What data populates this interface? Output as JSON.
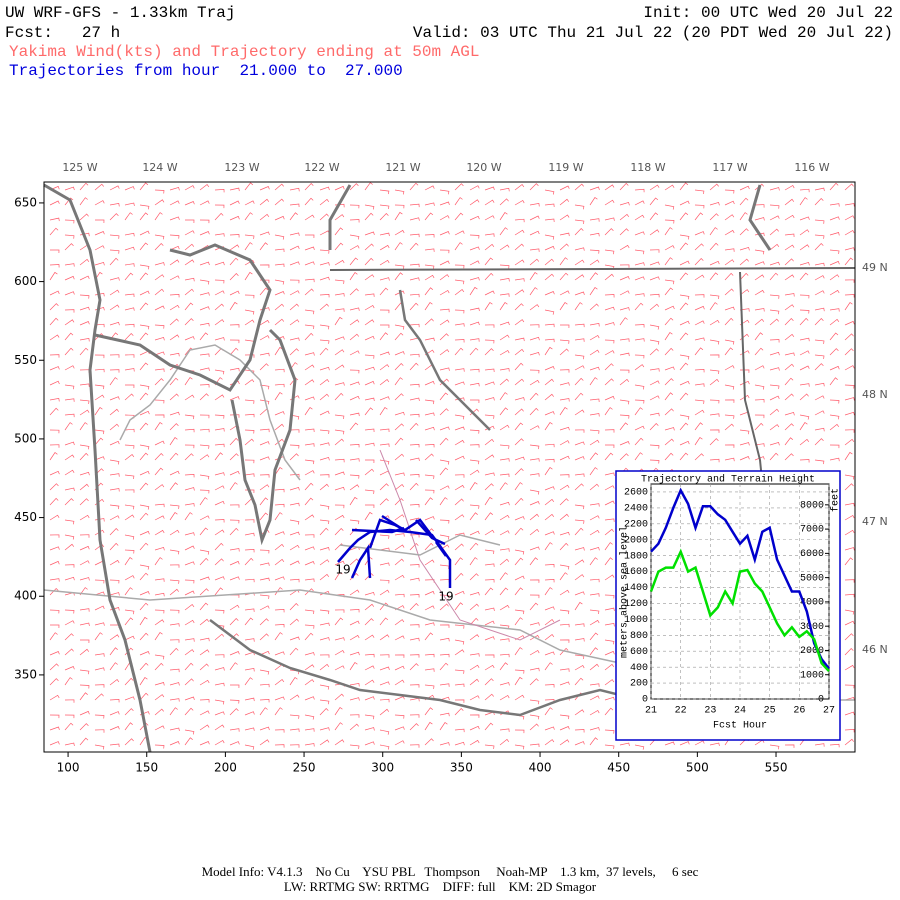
{
  "header": {
    "title": "UW WRF-GFS - 1.33km Traj",
    "fcst": "Fcst:   27 h",
    "init": "Init: 00 UTC Wed 20 Jul 22",
    "valid": "Valid: 03 UTC Thu 21 Jul 22 (20 PDT Wed 20 Jul 22)",
    "subtitle": "Yakima Wind(kts) and Trajectory ending at 50m AGL",
    "trajectories": "Trajectories from hour  21.000 to  27.000"
  },
  "map": {
    "xlim": [
      84.7,
      600.2
    ],
    "ylim": [
      301,
      663.3
    ],
    "xticks": [
      100,
      150,
      200,
      250,
      300,
      350,
      400,
      450,
      500,
      550
    ],
    "yticks": [
      350,
      400,
      450,
      500,
      550,
      600,
      650
    ],
    "longitudes": [
      "125 W",
      "124 W",
      "123 W",
      "122 W",
      "121 W",
      "120 W",
      "119 W",
      "118 W",
      "117 W",
      "116 W"
    ],
    "latitudes": [
      "49 N",
      "48 N",
      "47 N",
      "46 N"
    ],
    "trajectory_labels": [
      "19",
      "19"
    ]
  },
  "chart_data": {
    "type": "line",
    "title": "Trajectory and Terrain Height",
    "xlabel": "Fcst Hour",
    "ylabel": "meters above sea level",
    "y2label": "feet",
    "x": [
      21,
      21.25,
      21.5,
      21.75,
      22,
      22.25,
      22.5,
      22.75,
      23,
      23.25,
      23.5,
      23.75,
      24,
      24.25,
      24.5,
      24.75,
      25,
      25.25,
      25.5,
      25.75,
      26,
      26.25,
      26.5,
      26.75,
      27
    ],
    "series": [
      {
        "color": "#0000cc",
        "values": [
          1850,
          1950,
          2150,
          2400,
          2620,
          2450,
          2150,
          2420,
          2420,
          2320,
          2250,
          2100,
          1950,
          2050,
          1750,
          2100,
          2150,
          1750,
          1550,
          1350,
          1350,
          1100,
          700,
          500,
          380
        ]
      },
      {
        "color": "#00e000",
        "values": [
          1350,
          1600,
          1650,
          1650,
          1850,
          1600,
          1650,
          1350,
          1050,
          1150,
          1350,
          1200,
          1600,
          1620,
          1450,
          1350,
          1150,
          950,
          800,
          900,
          780,
          850,
          750,
          450,
          350
        ]
      }
    ],
    "xlim": [
      21,
      27
    ],
    "xticks": [
      21,
      22,
      23,
      24,
      25,
      26,
      27
    ],
    "ylim": [
      0,
      2700
    ],
    "yticks": [
      0,
      200,
      400,
      600,
      800,
      1000,
      1200,
      1400,
      1600,
      1800,
      2000,
      2200,
      2400,
      2600
    ],
    "y2lim": [
      0,
      8858
    ],
    "y2ticks": [
      0,
      1000,
      2000,
      3000,
      4000,
      5000,
      6000,
      7000,
      8000
    ],
    "grid": true
  },
  "footer": {
    "line1": "Model Info: V4.1.3    No Cu    YSU PBL   Thompson     Noah-MP    1.3 km,  37 levels,     6 sec",
    "line2": "LW: RRTMG SW: RRTMG    DIFF: full    KM: 2D Smagor"
  }
}
